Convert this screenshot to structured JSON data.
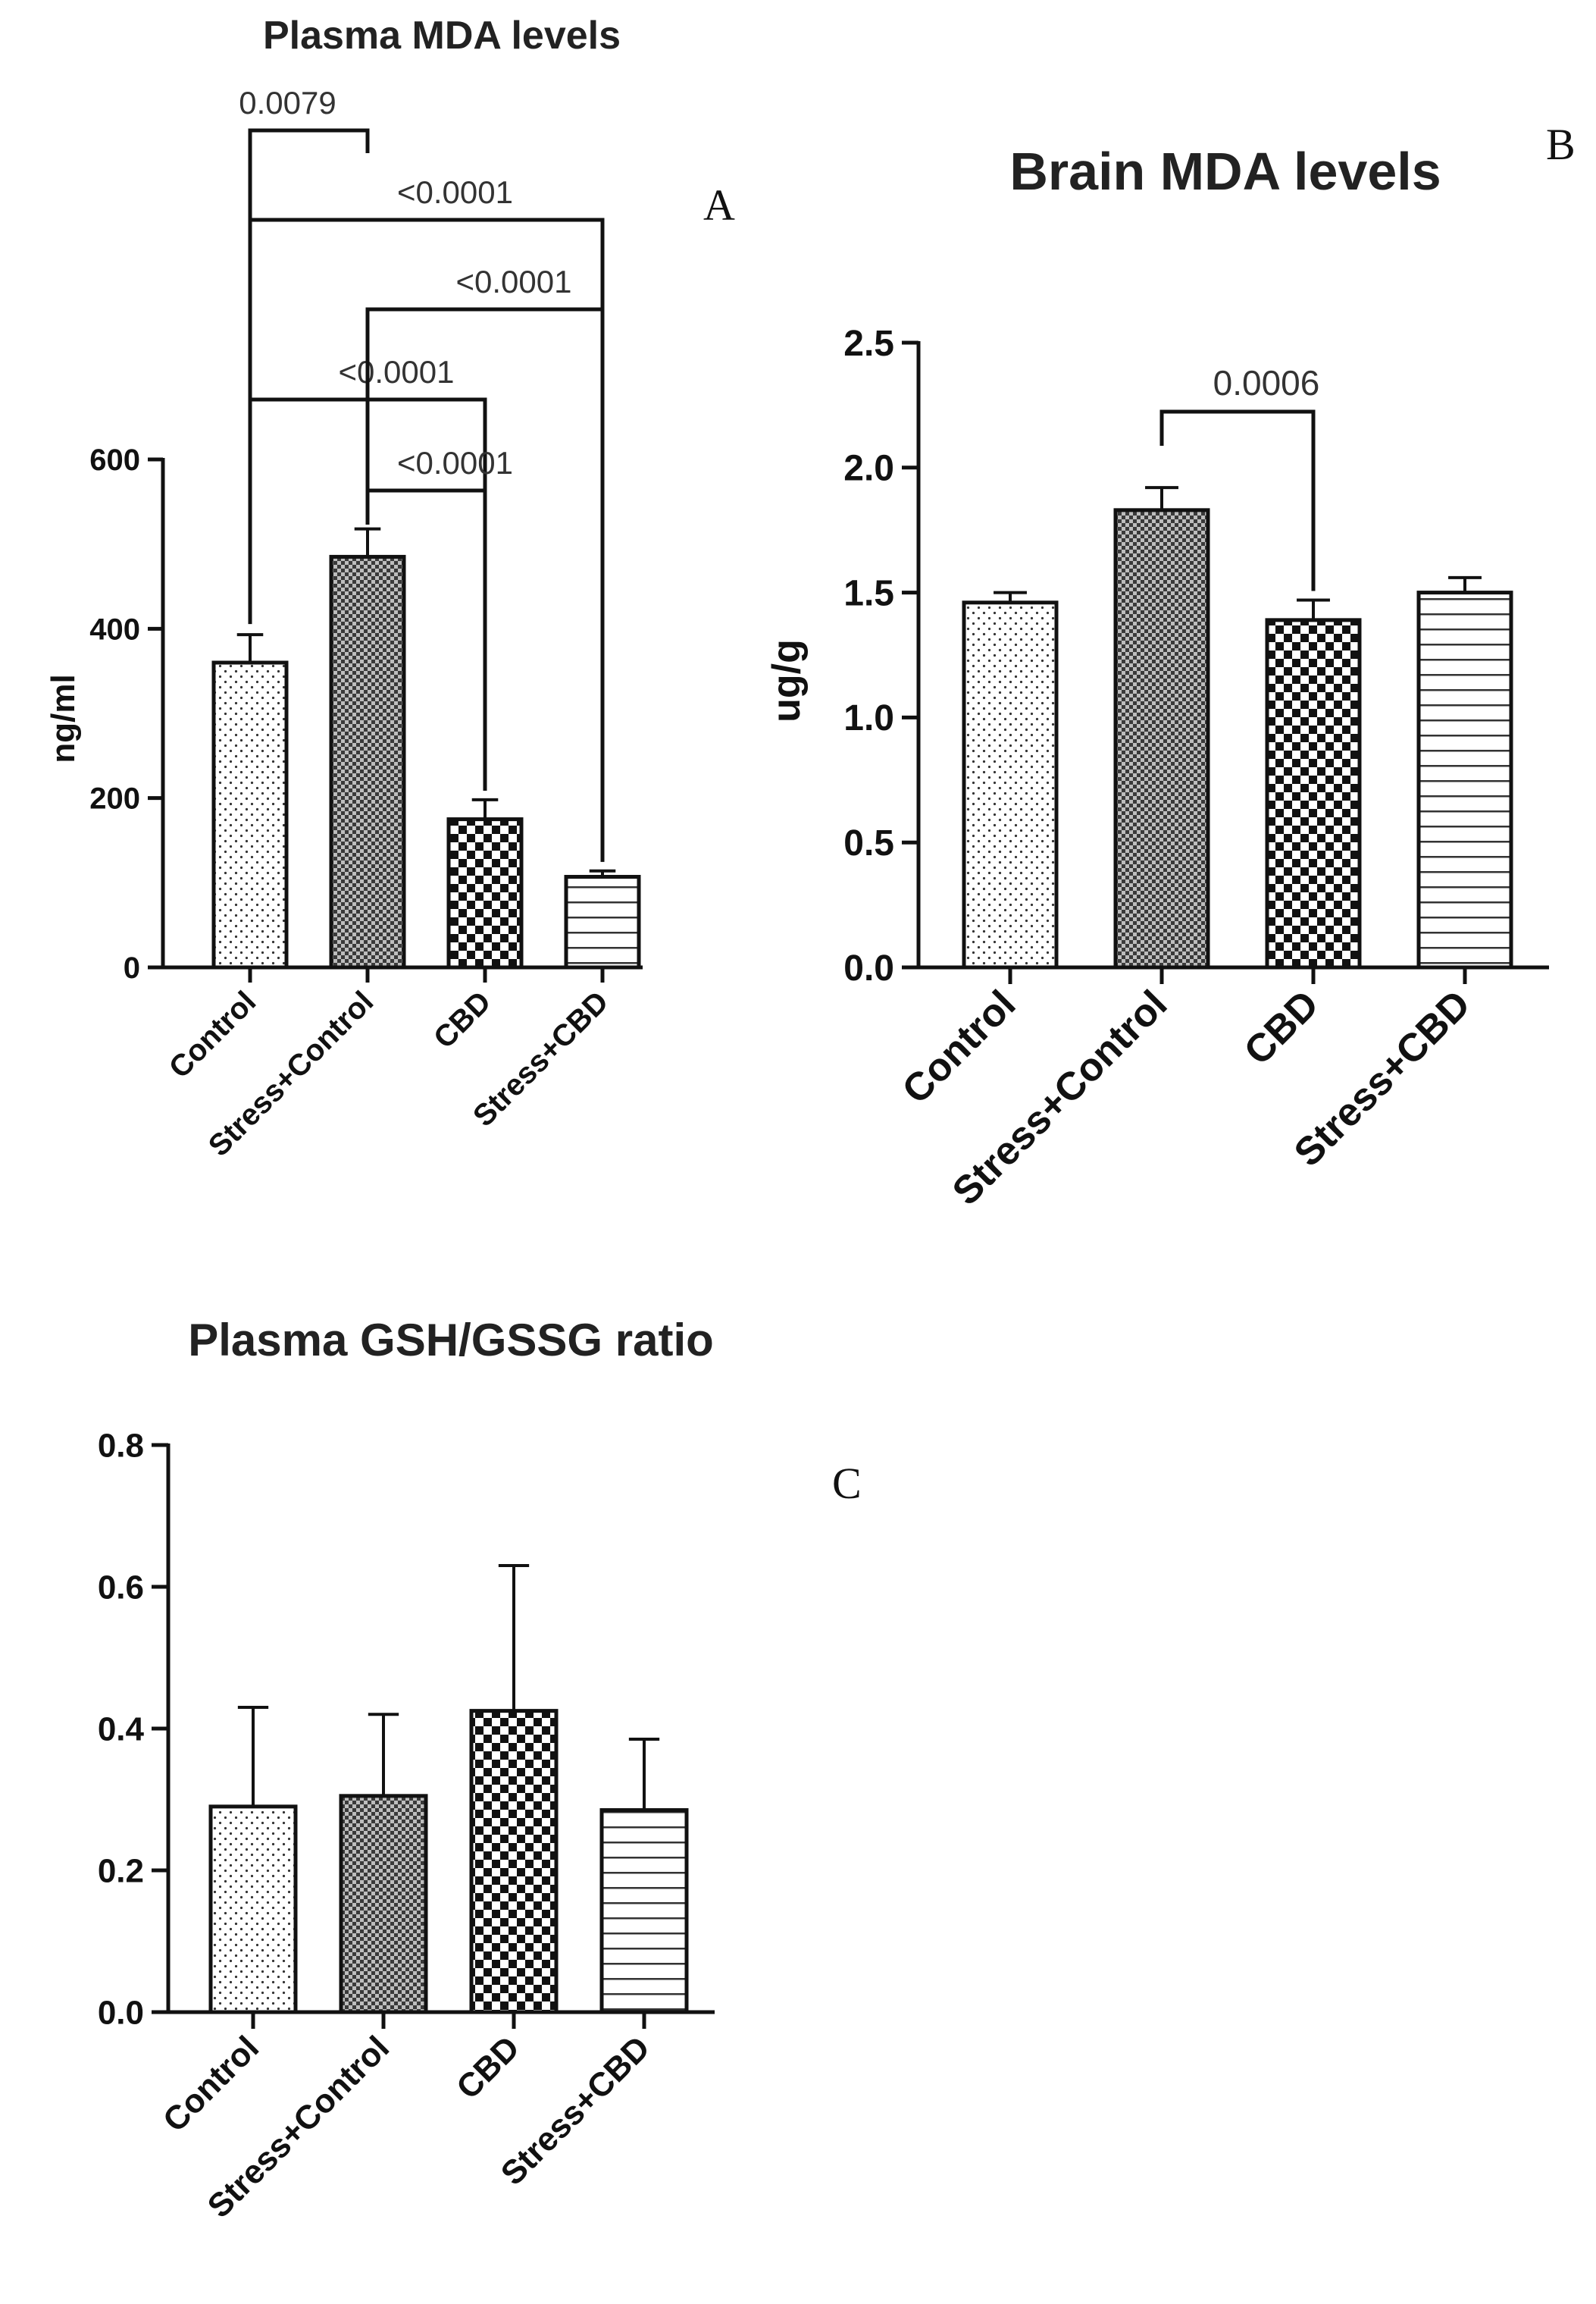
{
  "chart_data": [
    {
      "type": "bar",
      "panel_label": "A",
      "title": "Plasma MDA levels",
      "ylabel": "ng/ml",
      "xlabel": "",
      "categories": [
        "Control",
        "Stress+Control",
        "CBD",
        "Stress+CBD"
      ],
      "values": [
        360,
        485,
        175,
        107
      ],
      "errors": [
        33,
        33,
        23,
        7
      ],
      "ylim": [
        0,
        600
      ],
      "yticks": [
        "0",
        "200",
        "400",
        "600"
      ],
      "patterns": [
        "dots",
        "fine-check",
        "checker",
        "hlines"
      ],
      "comparisons": [
        {
          "from": 0,
          "to": 1,
          "p": "0.0079"
        },
        {
          "from": 0,
          "to": 3,
          "p": "<0.0001"
        },
        {
          "from": 1,
          "to": 3,
          "p": "<0.0001"
        },
        {
          "from": 0,
          "to": 2,
          "p": "<0.0001"
        },
        {
          "from": 1,
          "to": 2,
          "p": "<0.0001"
        }
      ]
    },
    {
      "type": "bar",
      "panel_label": "B",
      "title": "Brain MDA levels",
      "ylabel": "ug/g",
      "xlabel": "",
      "categories": [
        "Control",
        "Stress+Control",
        "CBD",
        "Stress+CBD"
      ],
      "values": [
        1.46,
        1.83,
        1.39,
        1.5
      ],
      "errors": [
        0.04,
        0.09,
        0.08,
        0.06
      ],
      "ylim": [
        0,
        2.5
      ],
      "yticks": [
        "0.0",
        "0.5",
        "1.0",
        "1.5",
        "2.0",
        "2.5"
      ],
      "patterns": [
        "dots",
        "fine-check",
        "checker",
        "hlines"
      ],
      "comparisons": [
        {
          "from": 1,
          "to": 2,
          "p": "0.0006"
        }
      ]
    },
    {
      "type": "bar",
      "panel_label": "C",
      "title": "Plasma GSH/GSSG ratio",
      "ylabel": "",
      "xlabel": "",
      "categories": [
        "Control",
        "Stress+Control",
        "CBD",
        "Stress+CBD"
      ],
      "values": [
        0.29,
        0.305,
        0.425,
        0.285
      ],
      "errors": [
        0.14,
        0.115,
        0.205,
        0.1
      ],
      "ylim": [
        0,
        0.8
      ],
      "yticks": [
        "0.0",
        "0.2",
        "0.4",
        "0.6",
        "0.8"
      ],
      "patterns": [
        "dots",
        "fine-check",
        "checker",
        "hlines"
      ],
      "comparisons": []
    }
  ]
}
